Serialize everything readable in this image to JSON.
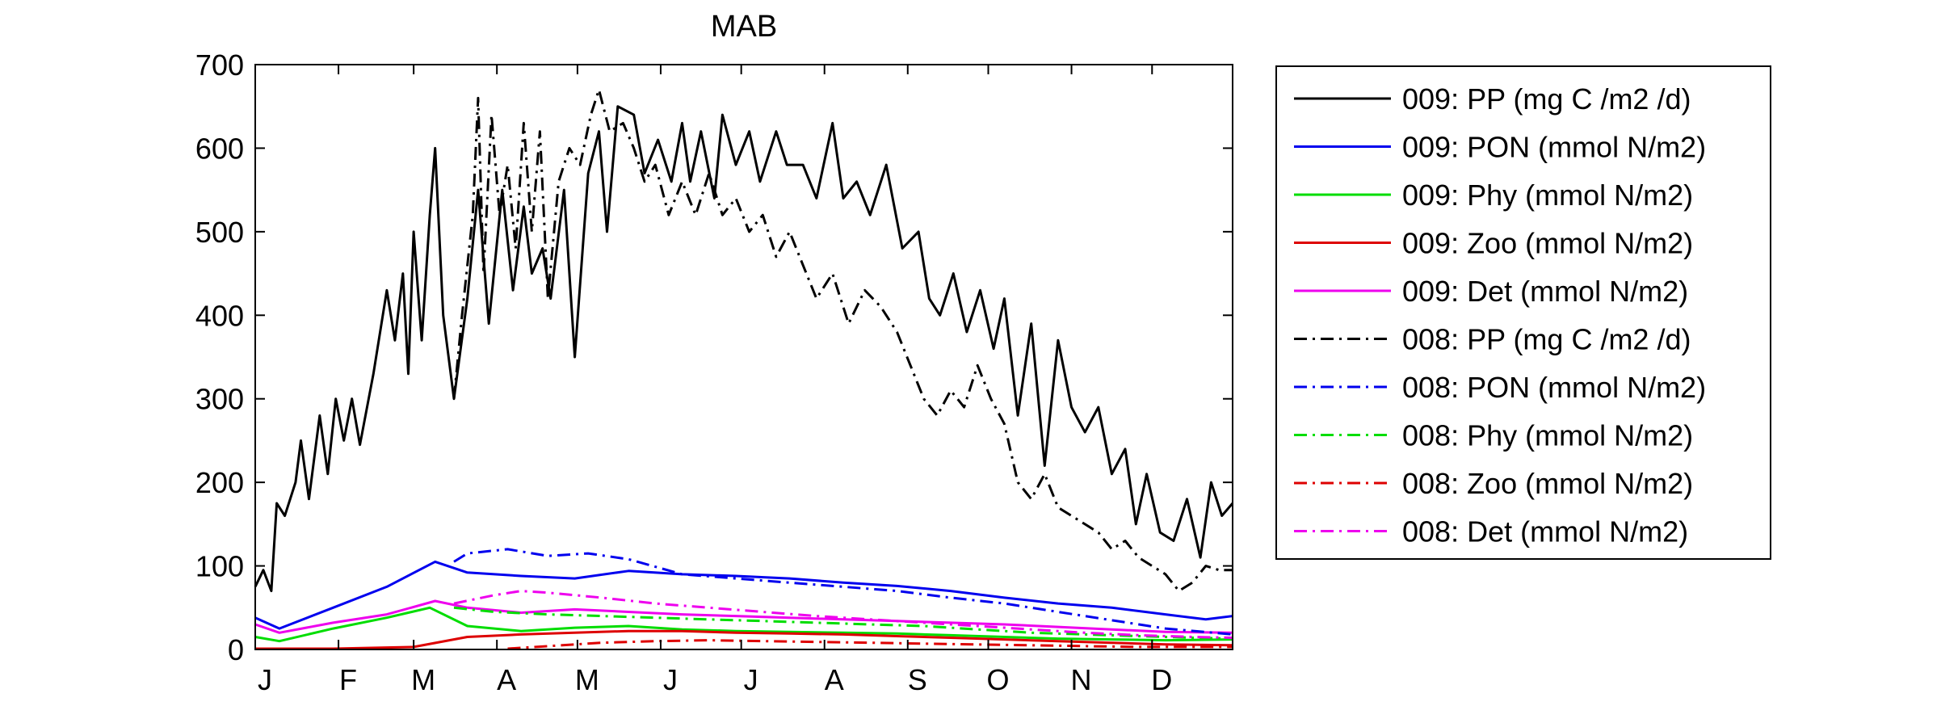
{
  "chart_data": {
    "type": "line",
    "title": "MAB",
    "xlabel": "",
    "ylabel": "",
    "xlim": [
      1,
      365
    ],
    "ylim": [
      0,
      700
    ],
    "yticks": [
      0,
      100,
      200,
      300,
      400,
      500,
      600,
      700
    ],
    "month_ticks": [
      {
        "label": "J",
        "day": 1
      },
      {
        "label": "F",
        "day": 32
      },
      {
        "label": "M",
        "day": 60
      },
      {
        "label": "A",
        "day": 91
      },
      {
        "label": "M",
        "day": 121
      },
      {
        "label": "J",
        "day": 152
      },
      {
        "label": "J",
        "day": 182
      },
      {
        "label": "A",
        "day": 213
      },
      {
        "label": "S",
        "day": 244
      },
      {
        "label": "O",
        "day": 274
      },
      {
        "label": "N",
        "day": 305
      },
      {
        "label": "D",
        "day": 335
      }
    ],
    "grid": false,
    "legend_position": "outside-right",
    "series": [
      {
        "name": "009: PP (mg C /m2 /d)",
        "color": "#000000",
        "style": "solid",
        "points": [
          [
            1,
            75
          ],
          [
            4,
            95
          ],
          [
            7,
            70
          ],
          [
            9,
            175
          ],
          [
            12,
            160
          ],
          [
            16,
            200
          ],
          [
            18,
            250
          ],
          [
            21,
            180
          ],
          [
            25,
            280
          ],
          [
            28,
            210
          ],
          [
            31,
            300
          ],
          [
            34,
            250
          ],
          [
            37,
            300
          ],
          [
            40,
            245
          ],
          [
            45,
            330
          ],
          [
            50,
            430
          ],
          [
            53,
            370
          ],
          [
            56,
            450
          ],
          [
            58,
            330
          ],
          [
            60,
            500
          ],
          [
            63,
            370
          ],
          [
            66,
            520
          ],
          [
            68,
            600
          ],
          [
            71,
            400
          ],
          [
            75,
            300
          ],
          [
            80,
            420
          ],
          [
            84,
            550
          ],
          [
            88,
            390
          ],
          [
            93,
            550
          ],
          [
            97,
            430
          ],
          [
            101,
            530
          ],
          [
            104,
            450
          ],
          [
            108,
            480
          ],
          [
            111,
            420
          ],
          [
            116,
            550
          ],
          [
            120,
            350
          ],
          [
            125,
            570
          ],
          [
            129,
            620
          ],
          [
            132,
            500
          ],
          [
            136,
            650
          ],
          [
            142,
            640
          ],
          [
            146,
            570
          ],
          [
            151,
            610
          ],
          [
            156,
            560
          ],
          [
            160,
            630
          ],
          [
            163,
            560
          ],
          [
            167,
            620
          ],
          [
            172,
            540
          ],
          [
            175,
            640
          ],
          [
            180,
            580
          ],
          [
            185,
            620
          ],
          [
            189,
            560
          ],
          [
            195,
            620
          ],
          [
            199,
            580
          ],
          [
            205,
            580
          ],
          [
            210,
            540
          ],
          [
            216,
            630
          ],
          [
            220,
            540
          ],
          [
            225,
            560
          ],
          [
            230,
            520
          ],
          [
            236,
            580
          ],
          [
            242,
            480
          ],
          [
            248,
            500
          ],
          [
            252,
            420
          ],
          [
            256,
            400
          ],
          [
            261,
            450
          ],
          [
            266,
            380
          ],
          [
            271,
            430
          ],
          [
            276,
            360
          ],
          [
            280,
            420
          ],
          [
            285,
            280
          ],
          [
            290,
            390
          ],
          [
            295,
            220
          ],
          [
            300,
            370
          ],
          [
            305,
            290
          ],
          [
            310,
            260
          ],
          [
            315,
            290
          ],
          [
            320,
            210
          ],
          [
            325,
            240
          ],
          [
            329,
            150
          ],
          [
            333,
            210
          ],
          [
            338,
            140
          ],
          [
            343,
            130
          ],
          [
            348,
            180
          ],
          [
            353,
            110
          ],
          [
            357,
            200
          ],
          [
            361,
            160
          ],
          [
            365,
            175
          ]
        ]
      },
      {
        "name": "009: PON (mmol N/m2)",
        "color": "#0000ee",
        "style": "solid",
        "points": [
          [
            1,
            38
          ],
          [
            10,
            25
          ],
          [
            30,
            50
          ],
          [
            50,
            75
          ],
          [
            68,
            105
          ],
          [
            80,
            92
          ],
          [
            100,
            88
          ],
          [
            120,
            85
          ],
          [
            140,
            94
          ],
          [
            160,
            90
          ],
          [
            180,
            88
          ],
          [
            200,
            85
          ],
          [
            220,
            80
          ],
          [
            240,
            76
          ],
          [
            260,
            70
          ],
          [
            280,
            62
          ],
          [
            300,
            55
          ],
          [
            320,
            50
          ],
          [
            340,
            42
          ],
          [
            355,
            36
          ],
          [
            365,
            40
          ]
        ]
      },
      {
        "name": "009: Phy (mmol N/m2)",
        "color": "#00dd00",
        "style": "solid",
        "points": [
          [
            1,
            15
          ],
          [
            10,
            10
          ],
          [
            30,
            25
          ],
          [
            50,
            38
          ],
          [
            66,
            50
          ],
          [
            80,
            28
          ],
          [
            100,
            22
          ],
          [
            120,
            26
          ],
          [
            140,
            28
          ],
          [
            160,
            24
          ],
          [
            180,
            22
          ],
          [
            200,
            21
          ],
          [
            220,
            20
          ],
          [
            240,
            19
          ],
          [
            260,
            17
          ],
          [
            280,
            15
          ],
          [
            300,
            13
          ],
          [
            320,
            12
          ],
          [
            340,
            11
          ],
          [
            365,
            12
          ]
        ]
      },
      {
        "name": "009: Zoo (mmol N/m2)",
        "color": "#dd0000",
        "style": "solid",
        "points": [
          [
            1,
            1
          ],
          [
            30,
            1
          ],
          [
            60,
            3
          ],
          [
            80,
            15
          ],
          [
            100,
            18
          ],
          [
            120,
            20
          ],
          [
            140,
            22
          ],
          [
            160,
            22
          ],
          [
            180,
            20
          ],
          [
            200,
            19
          ],
          [
            220,
            18
          ],
          [
            240,
            16
          ],
          [
            260,
            14
          ],
          [
            280,
            12
          ],
          [
            300,
            10
          ],
          [
            320,
            8
          ],
          [
            340,
            6
          ],
          [
            365,
            5
          ]
        ]
      },
      {
        "name": "009: Det (mmol N/m2)",
        "color": "#ee00ee",
        "style": "solid",
        "points": [
          [
            1,
            30
          ],
          [
            10,
            20
          ],
          [
            30,
            32
          ],
          [
            50,
            42
          ],
          [
            68,
            58
          ],
          [
            80,
            50
          ],
          [
            100,
            44
          ],
          [
            120,
            48
          ],
          [
            140,
            45
          ],
          [
            160,
            42
          ],
          [
            180,
            40
          ],
          [
            200,
            38
          ],
          [
            220,
            36
          ],
          [
            240,
            34
          ],
          [
            260,
            32
          ],
          [
            280,
            30
          ],
          [
            300,
            27
          ],
          [
            320,
            24
          ],
          [
            340,
            21
          ],
          [
            365,
            20
          ]
        ]
      },
      {
        "name": "008: PP (mg C /m2 /d)",
        "color": "#000000",
        "style": "dashdot",
        "points": [
          [
            75,
            300
          ],
          [
            78,
            400
          ],
          [
            82,
            520
          ],
          [
            84,
            660
          ],
          [
            86,
            450
          ],
          [
            89,
            640
          ],
          [
            92,
            520
          ],
          [
            95,
            580
          ],
          [
            98,
            480
          ],
          [
            101,
            630
          ],
          [
            104,
            500
          ],
          [
            107,
            620
          ],
          [
            110,
            420
          ],
          [
            114,
            560
          ],
          [
            118,
            600
          ],
          [
            122,
            580
          ],
          [
            126,
            640
          ],
          [
            129,
            670
          ],
          [
            133,
            620
          ],
          [
            138,
            630
          ],
          [
            142,
            600
          ],
          [
            146,
            560
          ],
          [
            150,
            580
          ],
          [
            155,
            520
          ],
          [
            160,
            560
          ],
          [
            165,
            520
          ],
          [
            170,
            570
          ],
          [
            175,
            520
          ],
          [
            180,
            540
          ],
          [
            185,
            500
          ],
          [
            190,
            520
          ],
          [
            195,
            470
          ],
          [
            200,
            500
          ],
          [
            205,
            460
          ],
          [
            210,
            420
          ],
          [
            216,
            450
          ],
          [
            222,
            390
          ],
          [
            228,
            430
          ],
          [
            234,
            410
          ],
          [
            240,
            380
          ],
          [
            245,
            340
          ],
          [
            250,
            300
          ],
          [
            255,
            280
          ],
          [
            260,
            310
          ],
          [
            265,
            290
          ],
          [
            270,
            340
          ],
          [
            275,
            300
          ],
          [
            280,
            270
          ],
          [
            285,
            200
          ],
          [
            290,
            180
          ],
          [
            295,
            210
          ],
          [
            300,
            170
          ],
          [
            305,
            160
          ],
          [
            310,
            150
          ],
          [
            315,
            140
          ],
          [
            320,
            120
          ],
          [
            325,
            130
          ],
          [
            330,
            110
          ],
          [
            335,
            100
          ],
          [
            340,
            90
          ],
          [
            345,
            70
          ],
          [
            350,
            80
          ],
          [
            355,
            100
          ],
          [
            360,
            95
          ],
          [
            365,
            95
          ]
        ]
      },
      {
        "name": "008: PON (mmol N/m2)",
        "color": "#0000ee",
        "style": "dashdot",
        "points": [
          [
            75,
            105
          ],
          [
            80,
            115
          ],
          [
            95,
            120
          ],
          [
            110,
            112
          ],
          [
            125,
            115
          ],
          [
            140,
            108
          ],
          [
            160,
            90
          ],
          [
            180,
            85
          ],
          [
            200,
            80
          ],
          [
            220,
            75
          ],
          [
            240,
            70
          ],
          [
            260,
            62
          ],
          [
            280,
            55
          ],
          [
            300,
            45
          ],
          [
            320,
            35
          ],
          [
            340,
            25
          ],
          [
            365,
            18
          ]
        ]
      },
      {
        "name": "008: Phy (mmol N/m2)",
        "color": "#00dd00",
        "style": "dashdot",
        "points": [
          [
            75,
            50
          ],
          [
            90,
            45
          ],
          [
            110,
            42
          ],
          [
            130,
            40
          ],
          [
            150,
            38
          ],
          [
            170,
            36
          ],
          [
            190,
            34
          ],
          [
            210,
            32
          ],
          [
            230,
            30
          ],
          [
            250,
            28
          ],
          [
            270,
            24
          ],
          [
            290,
            20
          ],
          [
            310,
            18
          ],
          [
            330,
            16
          ],
          [
            350,
            14
          ],
          [
            365,
            13
          ]
        ]
      },
      {
        "name": "008: Zoo (mmol N/m2)",
        "color": "#dd0000",
        "style": "dashdot",
        "points": [
          [
            95,
            1
          ],
          [
            110,
            4
          ],
          [
            130,
            8
          ],
          [
            150,
            10
          ],
          [
            170,
            11
          ],
          [
            190,
            10
          ],
          [
            210,
            9
          ],
          [
            230,
            8
          ],
          [
            250,
            7
          ],
          [
            270,
            6
          ],
          [
            290,
            5
          ],
          [
            310,
            4
          ],
          [
            330,
            3
          ],
          [
            350,
            3
          ],
          [
            365,
            3
          ]
        ]
      },
      {
        "name": "008: Det (mmol N/m2)",
        "color": "#ee00ee",
        "style": "dashdot",
        "points": [
          [
            75,
            55
          ],
          [
            90,
            65
          ],
          [
            100,
            70
          ],
          [
            110,
            68
          ],
          [
            130,
            62
          ],
          [
            150,
            55
          ],
          [
            170,
            50
          ],
          [
            190,
            45
          ],
          [
            210,
            40
          ],
          [
            230,
            36
          ],
          [
            250,
            32
          ],
          [
            270,
            28
          ],
          [
            290,
            24
          ],
          [
            310,
            20
          ],
          [
            330,
            17
          ],
          [
            350,
            15
          ],
          [
            365,
            14
          ]
        ]
      }
    ]
  }
}
